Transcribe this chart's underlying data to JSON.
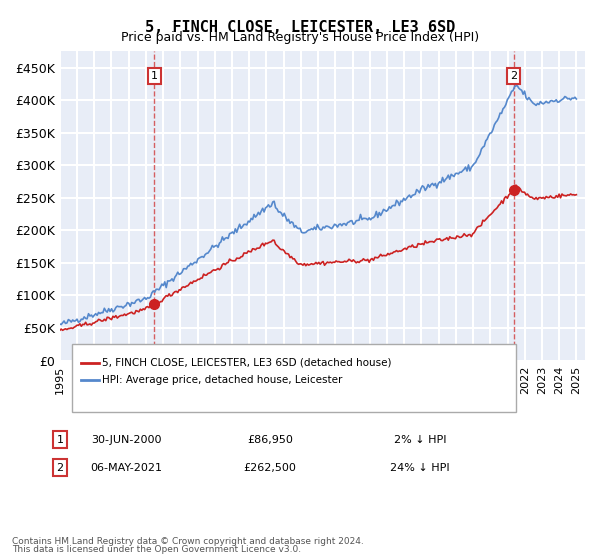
{
  "title": "5, FINCH CLOSE, LEICESTER, LE3 6SD",
  "subtitle": "Price paid vs. HM Land Registry's House Price Index (HPI)",
  "ylabel_ticks": [
    "£0",
    "£50K",
    "£100K",
    "£150K",
    "£200K",
    "£250K",
    "£300K",
    "£350K",
    "£400K",
    "£450K"
  ],
  "ytick_values": [
    0,
    50000,
    100000,
    150000,
    200000,
    250000,
    300000,
    350000,
    400000,
    450000
  ],
  "ylim": [
    0,
    475000
  ],
  "xlim_start": 1995.4,
  "xlim_end": 2025.5,
  "background_color": "#e8edf7",
  "plot_bg_color": "#e8edf7",
  "grid_color": "#ffffff",
  "hpi_color": "#5588cc",
  "price_color": "#cc2222",
  "transaction1_date": 2000.5,
  "transaction1_price": 86950,
  "transaction2_date": 2021.35,
  "transaction2_price": 262500,
  "legend_hpi_label": "HPI: Average price, detached house, Leicester",
  "legend_price_label": "5, FINCH CLOSE, LEICESTER, LE3 6SD (detached house)",
  "footer1": "Contains HM Land Registry data © Crown copyright and database right 2024.",
  "footer2": "This data is licensed under the Open Government Licence v3.0.",
  "ann1_label": "1",
  "ann1_date_str": "30-JUN-2000",
  "ann1_price_str": "£86,950",
  "ann1_hpi_str": "2% ↓ HPI",
  "ann2_label": "2",
  "ann2_date_str": "06-MAY-2021",
  "ann2_price_str": "£262,500",
  "ann2_hpi_str": "24% ↓ HPI"
}
